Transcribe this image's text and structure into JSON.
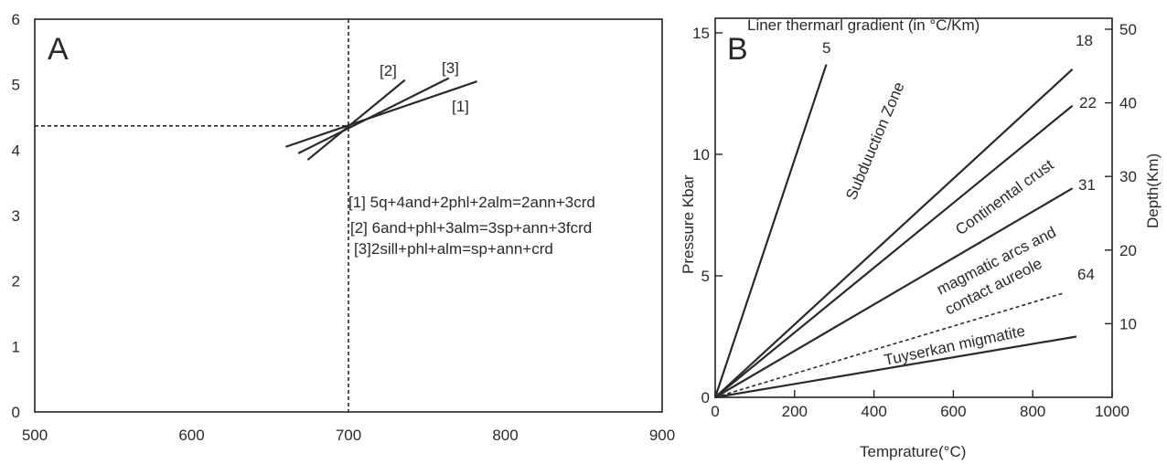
{
  "chart_data": [
    {
      "type": "line",
      "panel_label": "A",
      "xlim": [
        500,
        900
      ],
      "ylim": [
        0,
        6
      ],
      "xticks": [
        500,
        600,
        700,
        800,
        900
      ],
      "yticks": [
        0,
        1,
        2,
        3,
        4,
        5,
        6
      ],
      "series": [
        {
          "name": "[1]",
          "x": [
            660,
            782
          ],
          "y": [
            4.05,
            5.05
          ]
        },
        {
          "name": "[2]",
          "x": [
            674,
            736
          ],
          "y": [
            3.85,
            5.07
          ]
        },
        {
          "name": "[3]",
          "x": [
            668,
            764
          ],
          "y": [
            3.95,
            5.1
          ]
        }
      ],
      "reference_lines": {
        "x": 700,
        "y": 4.37,
        "style": "dashed"
      },
      "reaction_labels": [
        "[1] 5q+4and+2phl+2alm=2ann+3crd",
        "[2] 6and+phl+3alm=3sp+ann+3fcrd",
        "[3]2sill+phl+alm=sp+ann+crd"
      ],
      "grid": false
    },
    {
      "type": "line",
      "panel_label": "B",
      "title": "Liner thermarl gradient (in °C/Km)",
      "xlabel": "Temprature(°C)",
      "ylabel": "Pressure Kbar",
      "y2label": "Depth(Km)",
      "xlim": [
        0,
        1000
      ],
      "ylim": [
        0,
        15.6
      ],
      "xticks": [
        0,
        200,
        400,
        600,
        800,
        1000
      ],
      "yticks": [
        0,
        5,
        10,
        15
      ],
      "y2ticks": [
        10,
        20,
        30,
        40,
        50
      ],
      "series": [
        {
          "name": "5",
          "x": [
            0,
            280
          ],
          "y": [
            0,
            13.7
          ],
          "style": "solid"
        },
        {
          "name": "18",
          "x": [
            0,
            900
          ],
          "y": [
            0,
            13.5
          ],
          "style": "solid"
        },
        {
          "name": "22",
          "x": [
            0,
            900
          ],
          "y": [
            0,
            12.0
          ],
          "style": "solid"
        },
        {
          "name": "31",
          "x": [
            0,
            900
          ],
          "y": [
            0,
            8.6
          ],
          "style": "solid"
        },
        {
          "name": "64",
          "x": [
            0,
            880
          ],
          "y": [
            0,
            4.3
          ],
          "style": "dashed"
        },
        {
          "name": "",
          "x": [
            0,
            910
          ],
          "y": [
            0,
            2.5
          ],
          "style": "solid"
        }
      ],
      "region_labels": [
        "Subduuction Zone",
        "Continental crust",
        "magmatic arcs and",
        "contact aureole",
        "Tuyserkan migmatite"
      ],
      "grid": false
    }
  ]
}
